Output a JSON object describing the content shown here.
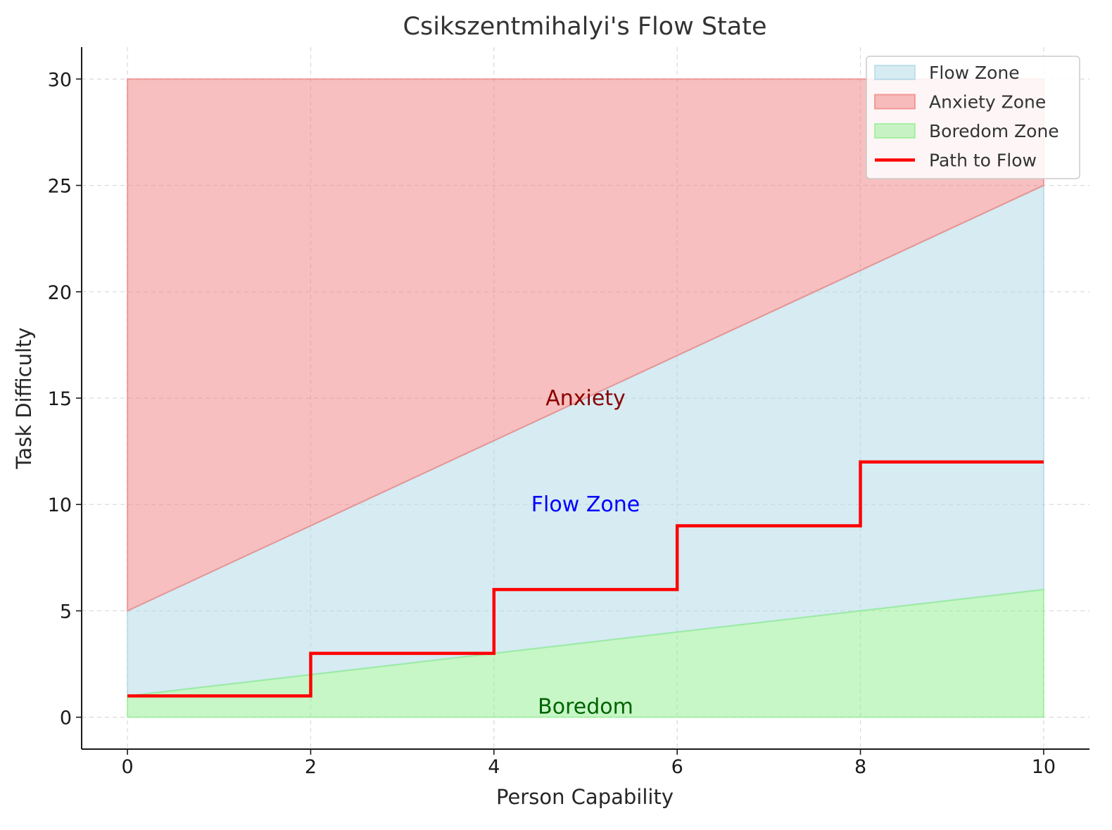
{
  "chart_data": {
    "type": "area",
    "title": "Csikszentmihalyi's Flow State",
    "xlabel": "Person Capability",
    "ylabel": "Task Difficulty",
    "xlim": [
      -0.5,
      10.5
    ],
    "ylim": [
      -1.5,
      31.5
    ],
    "xticks": [
      0,
      2,
      4,
      6,
      8,
      10
    ],
    "yticks": [
      0,
      5,
      10,
      15,
      20,
      25,
      30
    ],
    "grid": true,
    "legend_position": "top-right",
    "series": [
      {
        "name": "Flow Zone",
        "kind": "area",
        "color": "#add8e6",
        "x": [
          0,
          10
        ],
        "lower": [
          1,
          6
        ],
        "upper": [
          5,
          25
        ]
      },
      {
        "name": "Anxiety Zone",
        "kind": "area",
        "color": "#f08080",
        "x": [
          0,
          10
        ],
        "lower": [
          5,
          25
        ],
        "upper": [
          30,
          30
        ]
      },
      {
        "name": "Boredom Zone",
        "kind": "area",
        "color": "#90ee90",
        "x": [
          0,
          10
        ],
        "lower": [
          0,
          0
        ],
        "upper": [
          1,
          6
        ]
      },
      {
        "name": "Path to Flow",
        "kind": "step",
        "color": "#ff0000",
        "x": [
          0,
          2,
          2,
          4,
          4,
          6,
          6,
          8,
          8,
          10
        ],
        "y": [
          1,
          1,
          3,
          3,
          6,
          6,
          9,
          9,
          12,
          12
        ]
      }
    ],
    "annotations": [
      {
        "text": "Anxiety",
        "x": 5,
        "y": 15,
        "color": "#8b0000"
      },
      {
        "text": "Flow Zone",
        "x": 5,
        "y": 10,
        "color": "#0000ff"
      },
      {
        "text": "Boredom",
        "x": 5,
        "y": 0.5,
        "color": "#006400"
      }
    ]
  }
}
